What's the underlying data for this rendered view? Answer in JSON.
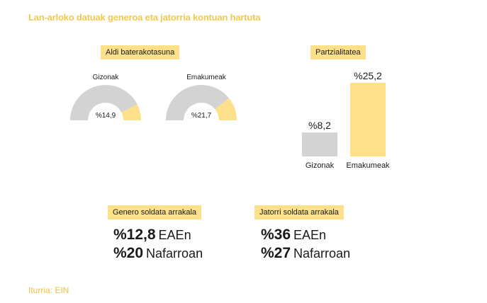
{
  "title": "Lan-arloko datuak generoa eta jatorria kontuan hartuta",
  "source": "Iturria: EIN",
  "colors": {
    "accent": "#fde08a",
    "title": "#f2c94c",
    "gray": "#d3d3d3"
  },
  "chart_data": [
    {
      "type": "gauge",
      "title": "Aldi baterakotasuna",
      "min": 0,
      "max": 100,
      "series": [
        {
          "name": "Gizonak",
          "value": 14.9,
          "label": "%14,9"
        },
        {
          "name": "Emakumeak",
          "value": 21.7,
          "label": "%21,7"
        }
      ]
    },
    {
      "type": "bar",
      "title": "Partzialitatea",
      "categories": [
        "Gizonak",
        "Emakumeak"
      ],
      "values": [
        8.2,
        25.2
      ],
      "value_labels": [
        "%8,2",
        "%25,2"
      ],
      "ylim": [
        0,
        25.2
      ],
      "colors": [
        "#d3d3d3",
        "#fde08a"
      ]
    }
  ],
  "stats": [
    {
      "title": "Genero soldata arrakala",
      "lines": [
        {
          "value": "%12,8",
          "place": "EAEn"
        },
        {
          "value": "%20",
          "place": "Nafarroan"
        }
      ]
    },
    {
      "title": "Jatorri soldata arrakala",
      "lines": [
        {
          "value": "%36",
          "place": "EAEn"
        },
        {
          "value": "%27",
          "place": "Nafarroan"
        }
      ]
    }
  ]
}
